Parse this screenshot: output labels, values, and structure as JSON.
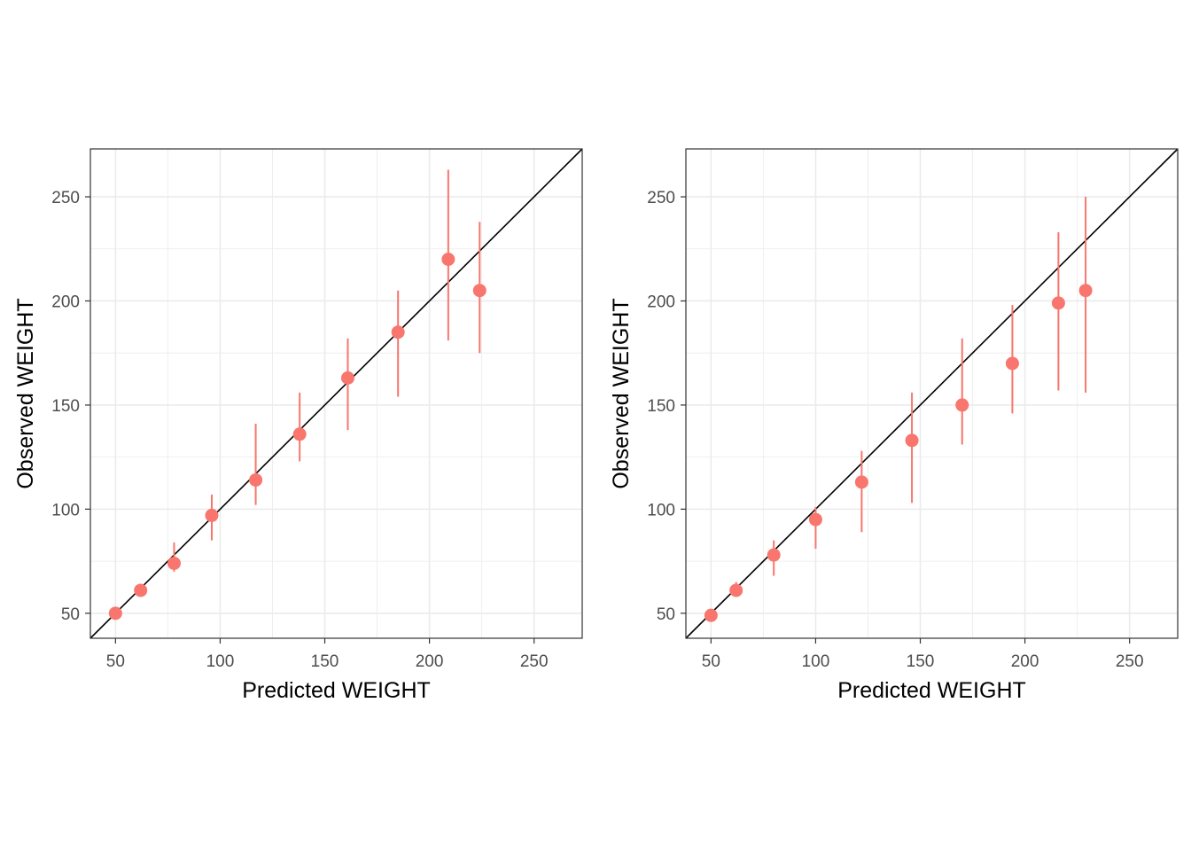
{
  "chart_data": [
    {
      "type": "scatter",
      "title": "",
      "xlabel": "Predicted WEIGHT",
      "ylabel": "Observed WEIGHT",
      "xlim": [
        38,
        273
      ],
      "ylim": [
        38,
        273
      ],
      "x_ticks": [
        50,
        100,
        150,
        200,
        250
      ],
      "y_ticks": [
        50,
        100,
        150,
        200,
        250
      ],
      "grid": true,
      "identity_line": true,
      "series": [
        {
          "points": [
            {
              "x": 50,
              "y": 50,
              "lo": 50,
              "hi": 50
            },
            {
              "x": 62,
              "y": 61,
              "lo": 60,
              "hi": 62
            },
            {
              "x": 78,
              "y": 74,
              "lo": 70,
              "hi": 84
            },
            {
              "x": 96,
              "y": 97,
              "lo": 85,
              "hi": 107
            },
            {
              "x": 117,
              "y": 114,
              "lo": 102,
              "hi": 141
            },
            {
              "x": 138,
              "y": 136,
              "lo": 123,
              "hi": 156
            },
            {
              "x": 161,
              "y": 163,
              "lo": 138,
              "hi": 182
            },
            {
              "x": 185,
              "y": 185,
              "lo": 154,
              "hi": 205
            },
            {
              "x": 209,
              "y": 220,
              "lo": 181,
              "hi": 263
            },
            {
              "x": 224,
              "y": 205,
              "lo": 175,
              "hi": 238
            }
          ]
        }
      ]
    },
    {
      "type": "scatter",
      "title": "",
      "xlabel": "Predicted WEIGHT",
      "ylabel": "Observed WEIGHT",
      "xlim": [
        38,
        273
      ],
      "ylim": [
        38,
        273
      ],
      "x_ticks": [
        50,
        100,
        150,
        200,
        250
      ],
      "y_ticks": [
        50,
        100,
        150,
        200,
        250
      ],
      "grid": true,
      "identity_line": true,
      "series": [
        {
          "points": [
            {
              "x": 50,
              "y": 49,
              "lo": 48,
              "hi": 50
            },
            {
              "x": 62,
              "y": 61,
              "lo": 59,
              "hi": 65
            },
            {
              "x": 80,
              "y": 78,
              "lo": 68,
              "hi": 85
            },
            {
              "x": 100,
              "y": 95,
              "lo": 81,
              "hi": 101
            },
            {
              "x": 122,
              "y": 113,
              "lo": 89,
              "hi": 128
            },
            {
              "x": 146,
              "y": 133,
              "lo": 103,
              "hi": 156
            },
            {
              "x": 170,
              "y": 150,
              "lo": 131,
              "hi": 182
            },
            {
              "x": 194,
              "y": 170,
              "lo": 146,
              "hi": 198
            },
            {
              "x": 216,
              "y": 199,
              "lo": 157,
              "hi": 233
            },
            {
              "x": 229,
              "y": 205,
              "lo": 156,
              "hi": 250
            }
          ]
        }
      ]
    }
  ],
  "colors": {
    "points": "#F8766D",
    "grid": "#EBEBEB",
    "identity_line": "#000000",
    "panel_border": "#333333"
  }
}
